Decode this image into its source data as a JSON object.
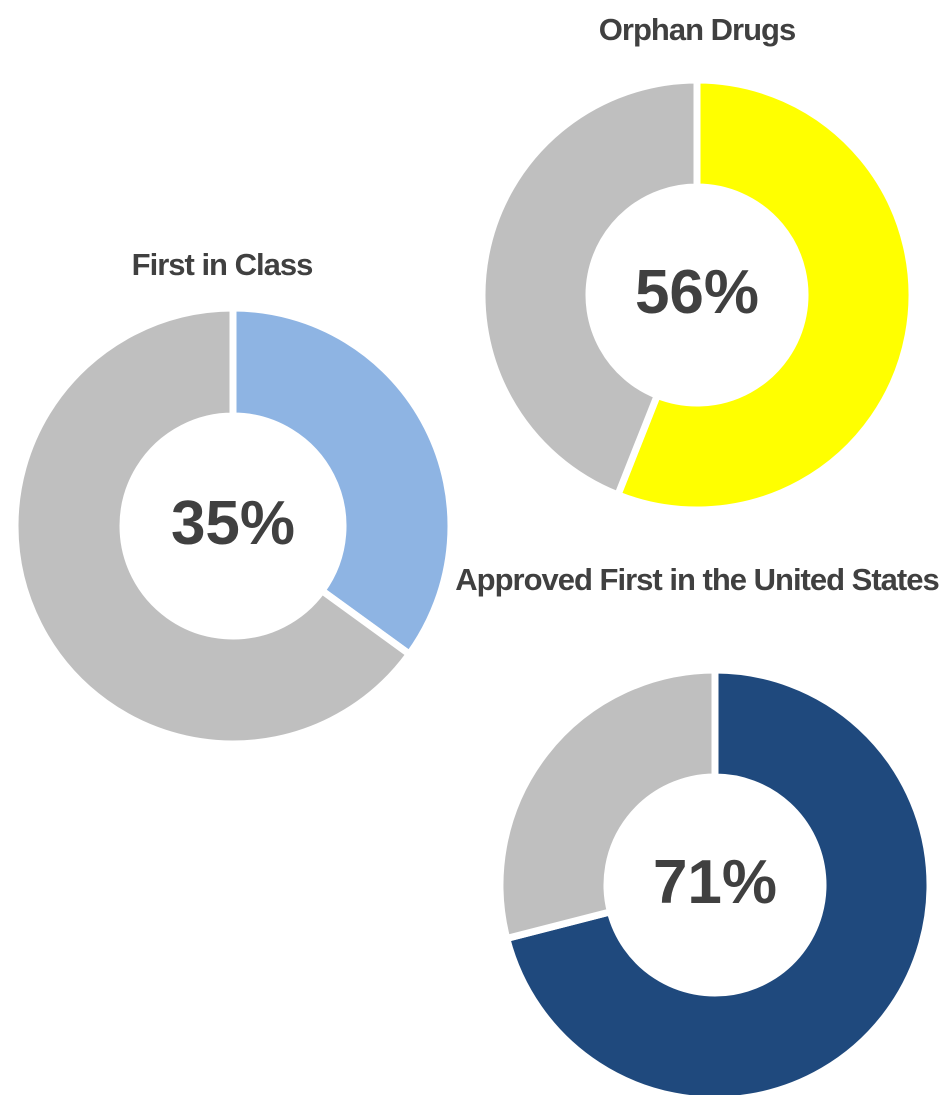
{
  "chart_data": [
    {
      "type": "donut",
      "title": "First in Class",
      "values": [
        35,
        65
      ],
      "value_labels": [
        "35%",
        null
      ],
      "colors": [
        "#8eb4e3",
        "#bfbfbf"
      ]
    },
    {
      "type": "donut",
      "title": "Orphan Drugs",
      "values": [
        56,
        44
      ],
      "value_labels": [
        "56%",
        null
      ],
      "colors": [
        "#ffff00",
        "#bfbfbf"
      ]
    },
    {
      "type": "donut",
      "title": "Approved First in the United States",
      "values": [
        71,
        29
      ],
      "value_labels": [
        "71%",
        null
      ],
      "colors": [
        "#1f497d",
        "#bfbfbf"
      ]
    }
  ]
}
